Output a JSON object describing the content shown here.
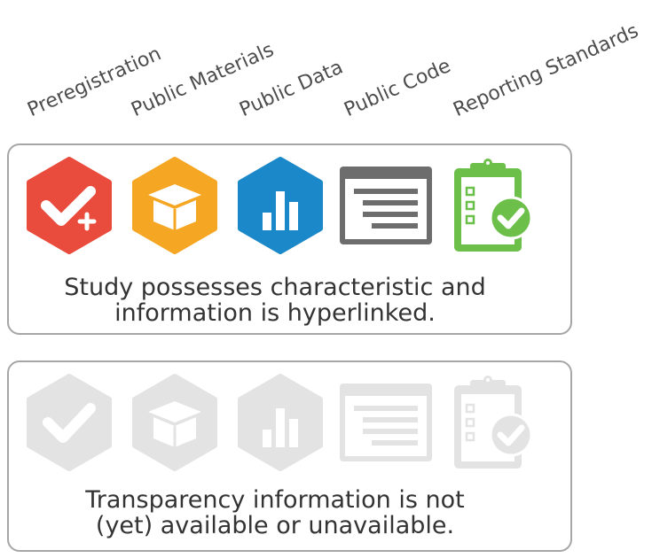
{
  "columns": [
    "Preregistration",
    "Public Materials",
    "Public Data",
    "Public Code",
    "Reporting Standards"
  ],
  "panels": {
    "active": {
      "line1": "Study possesses characteristic and",
      "line2": "information is hyperlinked."
    },
    "inactive": {
      "line1": "Transparency information is not",
      "line2": "(yet) available or unavailable."
    }
  },
  "badge_icons": [
    "preregistration-check-plus-icon",
    "public-materials-box-icon",
    "public-data-bar-chart-icon",
    "public-code-window-icon",
    "reporting-standards-clipboard-icon"
  ],
  "colors": {
    "preregistration": "#e94b3c",
    "public_materials": "#f5a623",
    "public_data": "#1a88c9",
    "public_code": "#6d6d6d",
    "reporting_standards": "#6cc04a",
    "inactive": "#e3e3e3"
  }
}
